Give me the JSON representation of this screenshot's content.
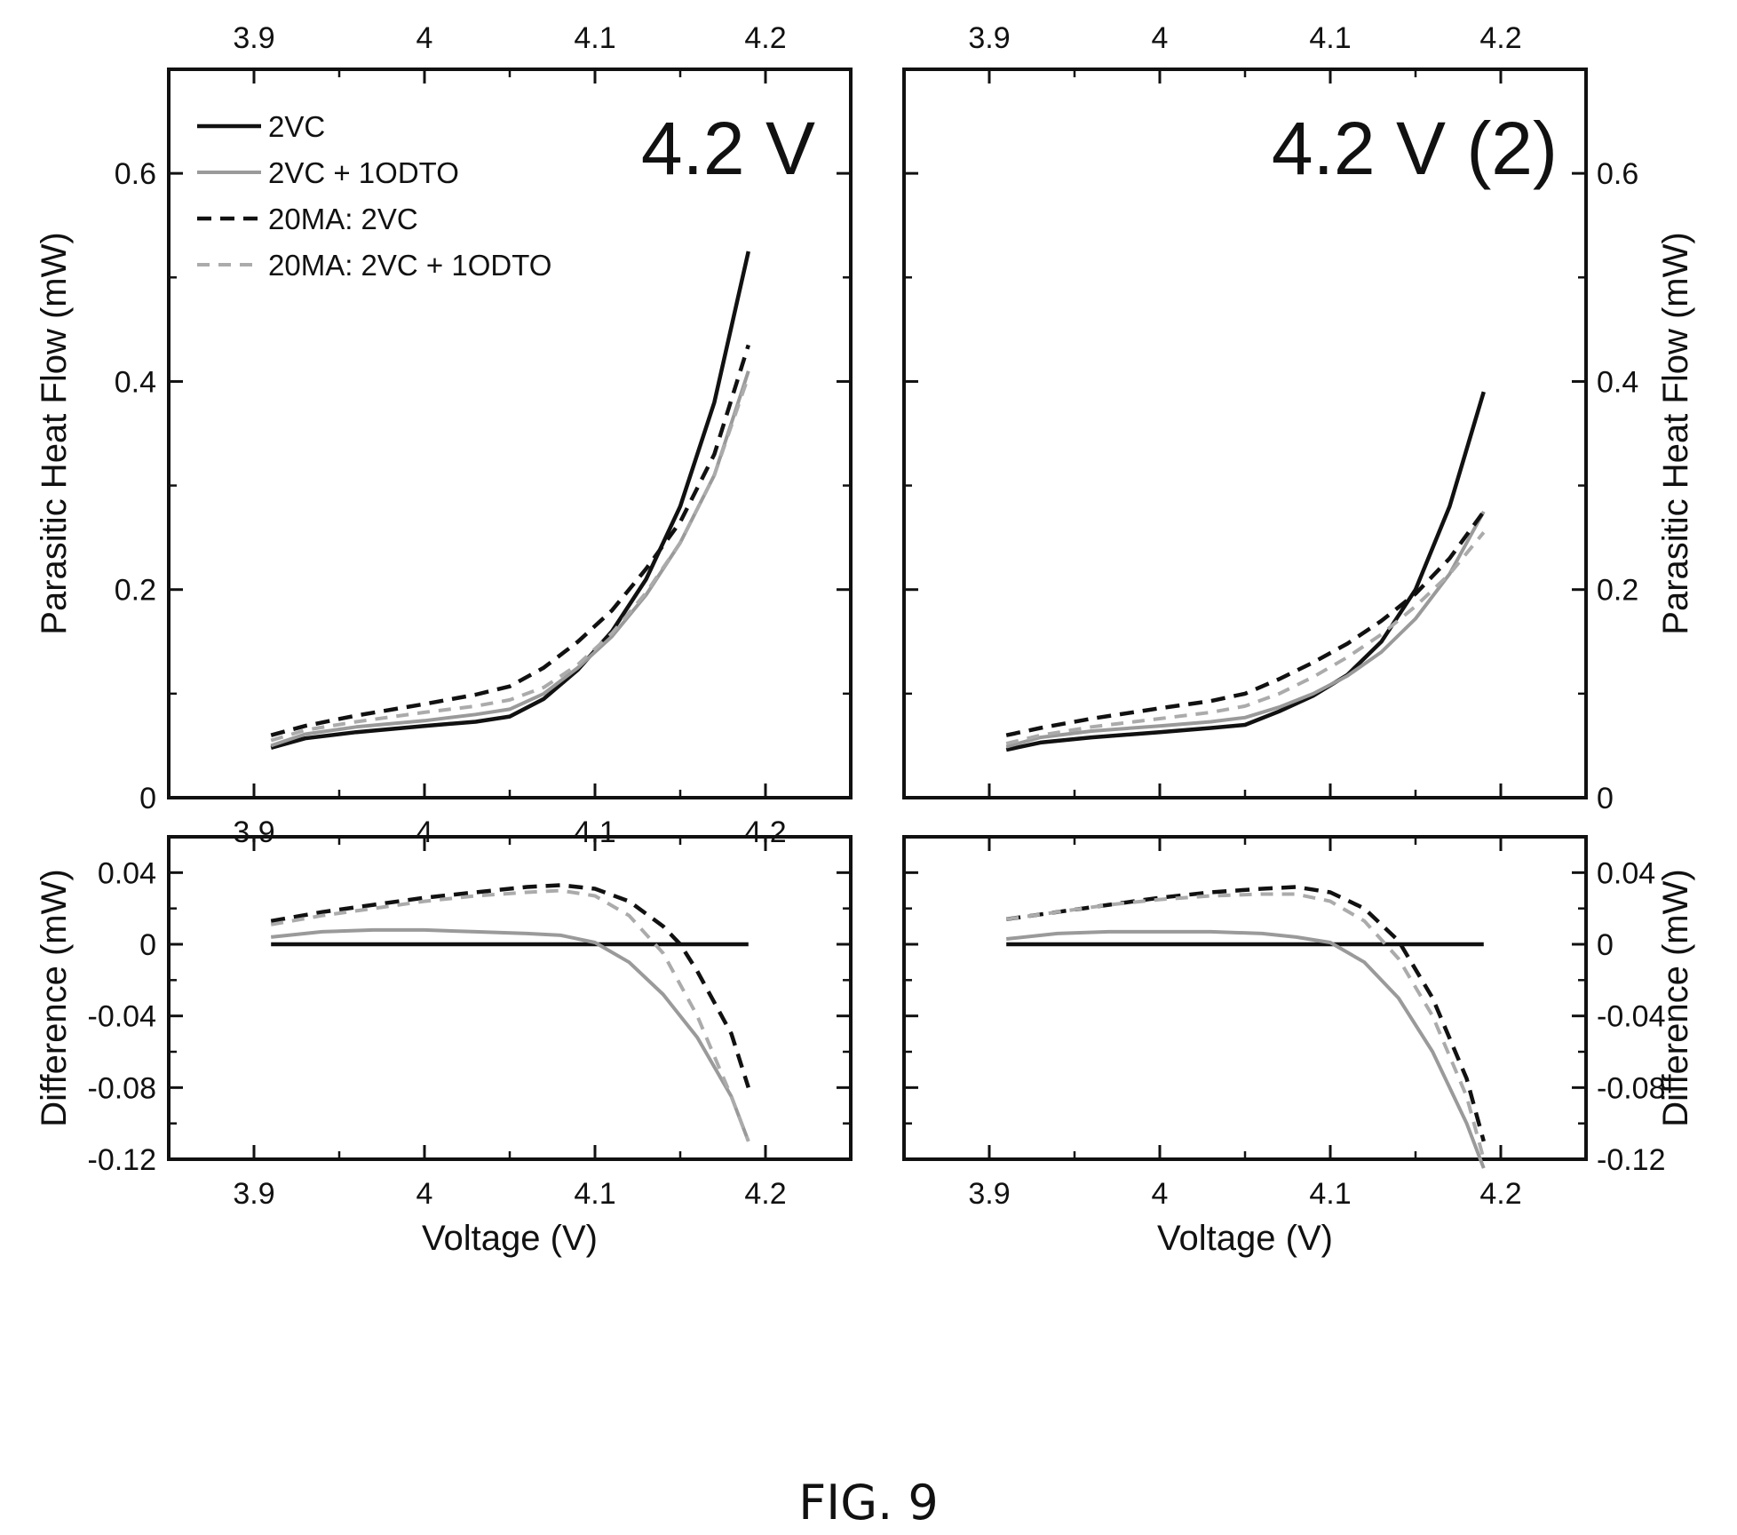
{
  "figure": {
    "caption": "FIG. 9"
  },
  "colors": {
    "solid_black": "#111111",
    "solid_gray": "#9a9a9a",
    "dash_black": "#111111",
    "dash_gray": "#ababab"
  },
  "chart_data": [
    {
      "id": "left-top",
      "type": "line",
      "title": "4.2 V",
      "xlabel": "",
      "ylabel": "Parasitic Heat Flow (mW)",
      "xlim": [
        3.85,
        4.25
      ],
      "ylim": [
        0,
        0.7
      ],
      "xticks": [
        "3.9",
        "4",
        "4.1",
        "4.2"
      ],
      "xticks_top": [
        "3.9",
        "4",
        "4.1",
        "4.2"
      ],
      "yticks": [
        "0",
        "0.2",
        "0.4",
        "0.6"
      ],
      "legend": {
        "placement": "top-left",
        "entries": [
          "2VC",
          "2VC + 1ODTO",
          "20MA: 2VC",
          "20MA: 2VC + 1ODTO"
        ]
      },
      "series": [
        {
          "name": "2VC",
          "style": "solid_black",
          "x": [
            3.91,
            3.93,
            3.96,
            4.0,
            4.03,
            4.05,
            4.07,
            4.09,
            4.11,
            4.13,
            4.15,
            4.17,
            4.19
          ],
          "y": [
            0.048,
            0.057,
            0.063,
            0.069,
            0.073,
            0.078,
            0.095,
            0.123,
            0.16,
            0.21,
            0.28,
            0.38,
            0.525
          ]
        },
        {
          "name": "2VC + 1ODTO",
          "style": "solid_gray",
          "x": [
            3.91,
            3.93,
            3.96,
            4.0,
            4.03,
            4.05,
            4.07,
            4.09,
            4.11,
            4.13,
            4.15,
            4.17,
            4.19
          ],
          "y": [
            0.05,
            0.061,
            0.068,
            0.074,
            0.08,
            0.085,
            0.1,
            0.125,
            0.155,
            0.195,
            0.245,
            0.31,
            0.41
          ]
        },
        {
          "name": "20MA: 2VC",
          "style": "dash_black",
          "x": [
            3.91,
            3.93,
            3.96,
            4.0,
            4.03,
            4.05,
            4.07,
            4.09,
            4.11,
            4.13,
            4.15,
            4.17,
            4.19
          ],
          "y": [
            0.06,
            0.069,
            0.079,
            0.09,
            0.099,
            0.107,
            0.125,
            0.15,
            0.18,
            0.22,
            0.265,
            0.33,
            0.435
          ]
        },
        {
          "name": "20MA: 2VC + 1ODTO",
          "style": "dash_gray",
          "x": [
            3.91,
            3.93,
            3.96,
            4.0,
            4.03,
            4.05,
            4.07,
            4.09,
            4.11,
            4.13,
            4.15,
            4.17,
            4.19
          ],
          "y": [
            0.055,
            0.065,
            0.073,
            0.082,
            0.088,
            0.094,
            0.106,
            0.128,
            0.158,
            0.197,
            0.245,
            0.31,
            0.405
          ]
        }
      ]
    },
    {
      "id": "right-top",
      "type": "line",
      "title": "4.2 V (2)",
      "xlabel": "",
      "ylabel": "Parasitic Heat Flow (mW)",
      "xlim": [
        3.85,
        4.25
      ],
      "ylim": [
        0,
        0.7
      ],
      "xticks": [],
      "xticks_top": [
        "3.9",
        "4",
        "4.1",
        "4.2"
      ],
      "yticks": [
        "0",
        "0.2",
        "0.4",
        "0.6"
      ],
      "series": [
        {
          "name": "2VC",
          "style": "solid_black",
          "x": [
            3.91,
            3.93,
            3.96,
            4.0,
            4.03,
            4.05,
            4.07,
            4.09,
            4.11,
            4.13,
            4.15,
            4.17,
            4.19
          ],
          "y": [
            0.046,
            0.053,
            0.058,
            0.063,
            0.067,
            0.07,
            0.083,
            0.098,
            0.118,
            0.15,
            0.2,
            0.28,
            0.39
          ]
        },
        {
          "name": "2VC + 1ODTO",
          "style": "solid_gray",
          "x": [
            3.91,
            3.93,
            3.96,
            4.0,
            4.03,
            4.05,
            4.07,
            4.09,
            4.11,
            4.13,
            4.15,
            4.17,
            4.19
          ],
          "y": [
            0.049,
            0.058,
            0.064,
            0.069,
            0.073,
            0.077,
            0.087,
            0.1,
            0.117,
            0.14,
            0.172,
            0.215,
            0.275
          ]
        },
        {
          "name": "20MA: 2VC",
          "style": "dash_black",
          "x": [
            3.91,
            3.93,
            3.96,
            4.0,
            4.03,
            4.05,
            4.07,
            4.09,
            4.11,
            4.13,
            4.15,
            4.17,
            4.19
          ],
          "y": [
            0.06,
            0.067,
            0.076,
            0.086,
            0.093,
            0.1,
            0.114,
            0.13,
            0.148,
            0.17,
            0.196,
            0.23,
            0.275
          ]
        },
        {
          "name": "20MA: 2VC + 1ODTO",
          "style": "dash_gray",
          "x": [
            3.91,
            3.93,
            3.96,
            4.0,
            4.03,
            4.05,
            4.07,
            4.09,
            4.11,
            4.13,
            4.15,
            4.17,
            4.19
          ],
          "y": [
            0.052,
            0.06,
            0.068,
            0.076,
            0.082,
            0.088,
            0.1,
            0.116,
            0.135,
            0.157,
            0.184,
            0.215,
            0.255
          ]
        }
      ]
    },
    {
      "id": "left-bottom",
      "type": "line",
      "title": "",
      "xlabel": "Voltage (V)",
      "ylabel": "Difference (mW)",
      "xlim": [
        3.85,
        4.25
      ],
      "ylim": [
        -0.12,
        0.06
      ],
      "xticks": [
        "3.9",
        "4",
        "4.1",
        "4.2"
      ],
      "yticks": [
        "0.04",
        "0",
        "-0.04",
        "-0.08",
        "-0.12"
      ],
      "series": [
        {
          "name": "2VC",
          "style": "solid_black",
          "x": [
            3.91,
            4.19
          ],
          "y": [
            0.0,
            0.0
          ]
        },
        {
          "name": "2VC + 1ODTO",
          "style": "solid_gray",
          "x": [
            3.91,
            3.94,
            3.97,
            4.0,
            4.03,
            4.06,
            4.08,
            4.1,
            4.12,
            4.14,
            4.16,
            4.18,
            4.19
          ],
          "y": [
            0.004,
            0.007,
            0.008,
            0.008,
            0.007,
            0.006,
            0.005,
            0.001,
            -0.01,
            -0.028,
            -0.052,
            -0.085,
            -0.11
          ]
        },
        {
          "name": "20MA: 2VC",
          "style": "dash_black",
          "x": [
            3.91,
            3.94,
            3.97,
            4.0,
            4.03,
            4.06,
            4.08,
            4.1,
            4.12,
            4.14,
            4.15,
            4.16,
            4.18,
            4.19
          ],
          "y": [
            0.013,
            0.018,
            0.022,
            0.026,
            0.029,
            0.032,
            0.033,
            0.031,
            0.024,
            0.01,
            0.0,
            -0.015,
            -0.05,
            -0.08
          ]
        },
        {
          "name": "20MA: 2VC + 1ODTO",
          "style": "dash_gray",
          "x": [
            3.91,
            3.94,
            3.97,
            4.0,
            4.03,
            4.06,
            4.08,
            4.1,
            4.12,
            4.14,
            4.16,
            4.18,
            4.19
          ],
          "y": [
            0.011,
            0.016,
            0.02,
            0.024,
            0.027,
            0.029,
            0.03,
            0.027,
            0.016,
            -0.005,
            -0.04,
            -0.085,
            -0.11
          ]
        }
      ]
    },
    {
      "id": "right-bottom",
      "type": "line",
      "title": "",
      "xlabel": "Voltage (V)",
      "ylabel": "Difference (mW)",
      "xlim": [
        3.85,
        4.25
      ],
      "ylim": [
        -0.12,
        0.06
      ],
      "xticks": [
        "3.9",
        "4",
        "4.1",
        "4.2"
      ],
      "yticks": [
        "0.04",
        "0",
        "-0.04",
        "-0.08",
        "-0.12"
      ],
      "series": [
        {
          "name": "2VC",
          "style": "solid_black",
          "x": [
            3.91,
            4.19
          ],
          "y": [
            0.0,
            0.0
          ]
        },
        {
          "name": "2VC + 1ODTO",
          "style": "solid_gray",
          "x": [
            3.91,
            3.94,
            3.97,
            4.0,
            4.03,
            4.06,
            4.08,
            4.1,
            4.12,
            4.14,
            4.16,
            4.18,
            4.19
          ],
          "y": [
            0.003,
            0.006,
            0.007,
            0.007,
            0.007,
            0.006,
            0.004,
            0.001,
            -0.01,
            -0.03,
            -0.06,
            -0.1,
            -0.125
          ]
        },
        {
          "name": "20MA: 2VC",
          "style": "dash_black",
          "x": [
            3.91,
            3.94,
            3.97,
            4.0,
            4.03,
            4.06,
            4.08,
            4.1,
            4.12,
            4.14,
            4.16,
            4.18,
            4.19
          ],
          "y": [
            0.014,
            0.018,
            0.022,
            0.026,
            0.029,
            0.031,
            0.032,
            0.029,
            0.02,
            0.002,
            -0.03,
            -0.075,
            -0.11
          ]
        },
        {
          "name": "20MA: 2VC + 1ODTO",
          "style": "dash_gray",
          "x": [
            3.91,
            3.94,
            3.97,
            4.0,
            4.03,
            4.06,
            4.08,
            4.1,
            4.12,
            4.14,
            4.16,
            4.18,
            4.19
          ],
          "y": [
            0.014,
            0.018,
            0.022,
            0.025,
            0.027,
            0.028,
            0.028,
            0.024,
            0.013,
            -0.008,
            -0.04,
            -0.085,
            -0.12
          ]
        }
      ]
    }
  ]
}
